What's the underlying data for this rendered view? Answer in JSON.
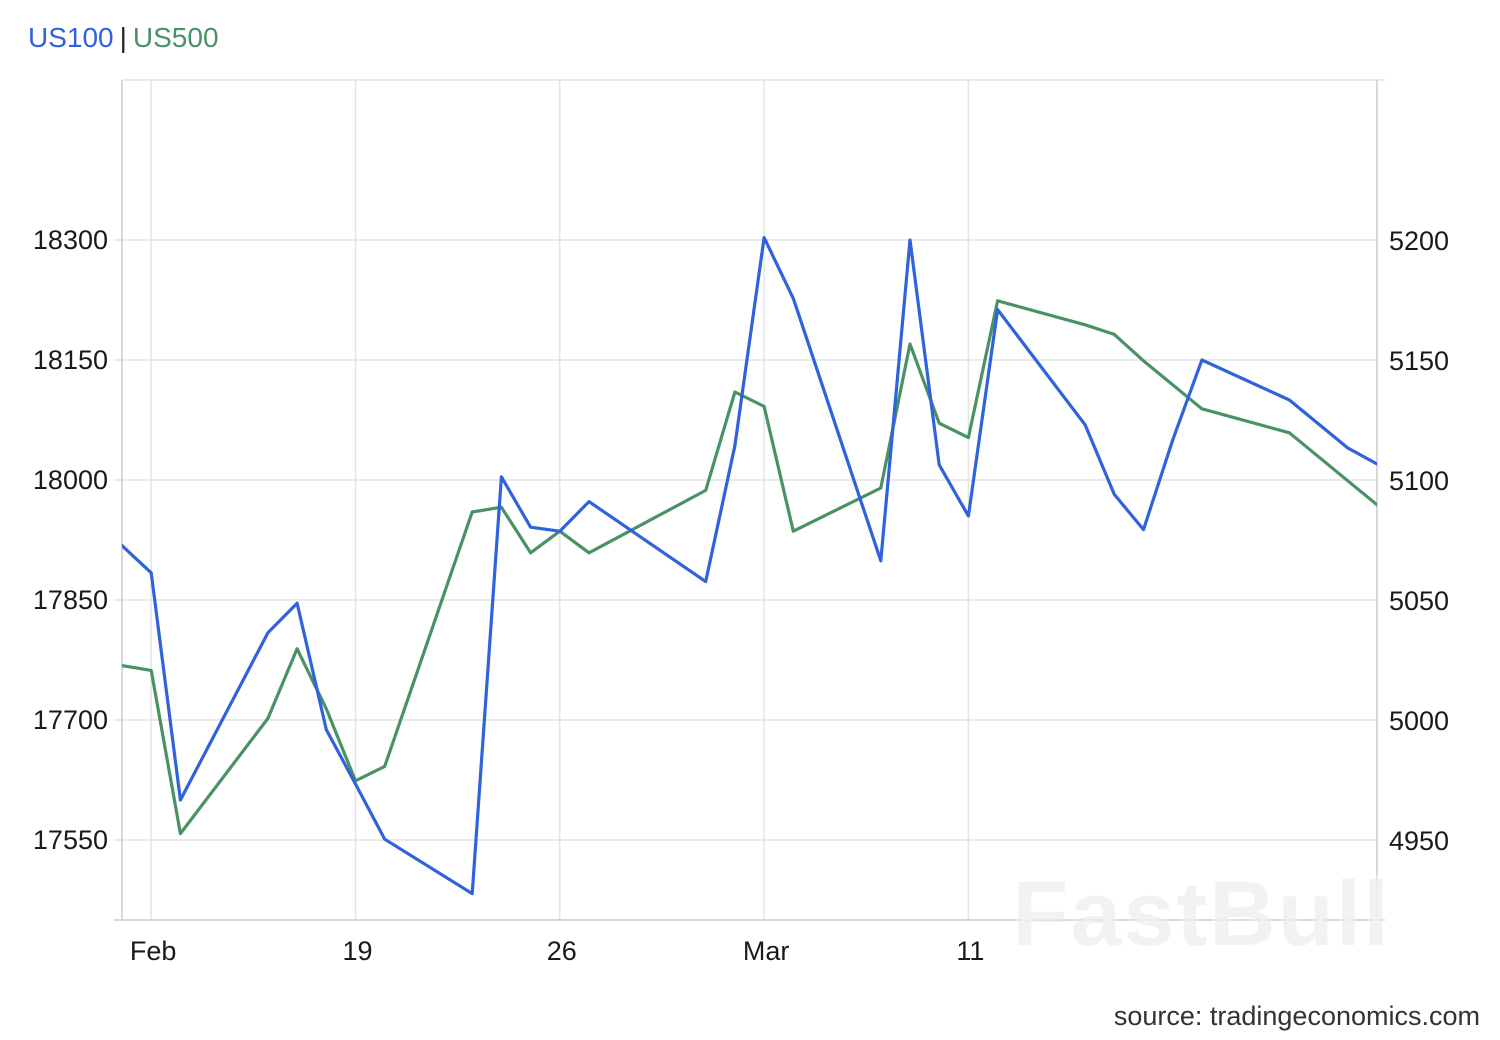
{
  "legend": {
    "us100": "US100",
    "separator": "|",
    "us500": "US500"
  },
  "source": "source: tradingeconomics.com",
  "watermark": "FastBull",
  "colors": {
    "us100": "#2f62dc",
    "us500": "#4a9265",
    "grid": "#e4e4e4",
    "axis": "#cccccc"
  },
  "chart_data": {
    "type": "line",
    "x": [
      "2024-01-31",
      "2024-02-01",
      "2024-02-02",
      "2024-02-05",
      "2024-02-06",
      "2024-02-07",
      "2024-02-08",
      "2024-02-09",
      "2024-02-12",
      "2024-02-13",
      "2024-02-14",
      "2024-02-15",
      "2024-02-16",
      "2024-02-20",
      "2024-02-21",
      "2024-02-22",
      "2024-02-23",
      "2024-02-26",
      "2024-02-27",
      "2024-02-28",
      "2024-02-29",
      "2024-03-01",
      "2024-03-04",
      "2024-03-05",
      "2024-03-06",
      "2024-03-07",
      "2024-03-08",
      "2024-03-11",
      "2024-03-12",
      "2024-03-13",
      "2024-03-14"
    ],
    "xlim": [
      "2024-01-31",
      "2024-03-14"
    ],
    "x_ticks": [
      {
        "date": "2024-02-01",
        "label": "Feb"
      },
      {
        "date": "2024-02-08",
        "label": "19"
      },
      {
        "date": "2024-02-15",
        "label": "26"
      },
      {
        "date": "2024-02-22",
        "label": "Mar"
      },
      {
        "date": "2024-02-29",
        "label": "11"
      }
    ],
    "series": [
      {
        "name": "US100",
        "axis": "left",
        "values": [
          17918,
          17884,
          17600,
          17809,
          17846,
          17688,
          17620,
          17551,
          17483,
          18004,
          17941,
          17936,
          17973,
          17873,
          18043,
          18303,
          18227,
          17899,
          18300,
          18019,
          17955,
          18213,
          18069,
          17982,
          17938,
          18050,
          18150,
          18100,
          18070,
          18040,
          18020
        ]
      },
      {
        "name": "US500",
        "axis": "right",
        "values": [
          5023,
          5021,
          4953,
          5001,
          5030,
          5005,
          4975,
          4981,
          5087,
          5089,
          5070,
          5079,
          5070,
          5096,
          5137,
          5131,
          5079,
          5097,
          5157,
          5124,
          5118,
          5175,
          5165,
          5161,
          5150,
          5140,
          5130,
          5120,
          5110,
          5100,
          5090
        ]
      }
    ],
    "y_left": {
      "lim": [
        17450,
        18500
      ],
      "ticks": [
        17550,
        17700,
        17850,
        18000,
        18150,
        18300
      ]
    },
    "y_right": {
      "lim": [
        4917,
        5267
      ],
      "ticks": [
        4950,
        5000,
        5050,
        5100,
        5150,
        5200
      ]
    },
    "grid": true,
    "legend_placement": "top-left"
  }
}
